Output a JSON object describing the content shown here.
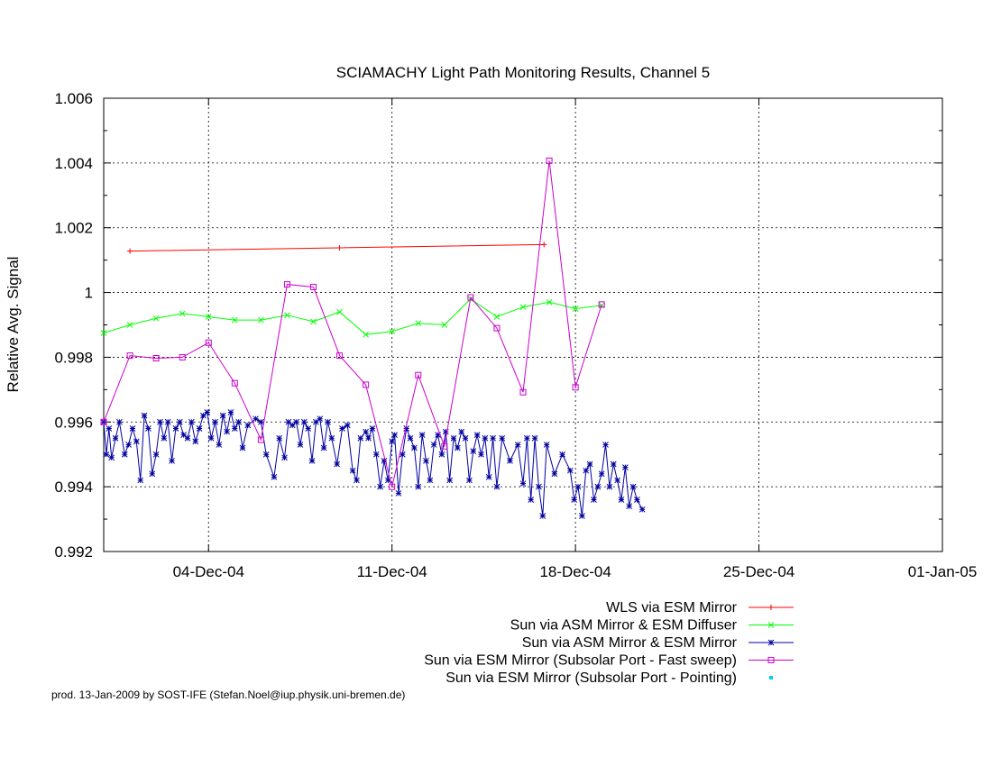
{
  "chart_data": {
    "type": "line",
    "title": "SCIAMACHY Light Path Monitoring Results, Channel 5",
    "ylabel": "Relative Avg. Signal",
    "xlabel": "",
    "xlim": [
      "2004-11-30",
      "2005-01-01"
    ],
    "ylim": [
      0.992,
      1.006
    ],
    "y_ticks": [
      0.992,
      0.994,
      0.996,
      0.998,
      1.0,
      1.002,
      1.004,
      1.006
    ],
    "y_tick_labels": [
      "0.992",
      "0.994",
      "0.996",
      "0.998",
      "1",
      "1.002",
      "1.004",
      "1.006"
    ],
    "x_ticks": [
      "2004-12-04",
      "2004-12-11",
      "2004-12-18",
      "2004-12-25",
      "2005-01-01"
    ],
    "x_tick_labels": [
      "04-Dec-04",
      "11-Dec-04",
      "18-Dec-04",
      "25-Dec-04",
      "01-Jan-05"
    ],
    "grid": true,
    "legend_position": "bottom-right",
    "series": [
      {
        "name": "WLS via ESM Mirror",
        "color": "#ff0000",
        "marker": "plus",
        "points": [
          [
            "2004-12-01",
            1.00128
          ],
          [
            "2004-12-09",
            1.00138
          ],
          [
            "2004-12-16.8",
            1.00148
          ]
        ]
      },
      {
        "name": "Sun via ASM Mirror & ESM Diffuser",
        "color": "#00ff00",
        "marker": "cross",
        "points": [
          [
            "2004-11-30",
            0.99875
          ],
          [
            "2004-12-01",
            0.999
          ],
          [
            "2004-12-02",
            0.9992
          ],
          [
            "2004-12-03",
            0.99935
          ],
          [
            "2004-12-04",
            0.99925
          ],
          [
            "2004-12-05",
            0.99915
          ],
          [
            "2004-12-06",
            0.99915
          ],
          [
            "2004-12-07",
            0.9993
          ],
          [
            "2004-12-08",
            0.9991
          ],
          [
            "2004-12-09",
            0.9994
          ],
          [
            "2004-12-10",
            0.9987
          ],
          [
            "2004-12-11",
            0.9988
          ],
          [
            "2004-12-12",
            0.99905
          ],
          [
            "2004-12-13",
            0.999
          ],
          [
            "2004-12-14",
            0.9998
          ],
          [
            "2004-12-15",
            0.99925
          ],
          [
            "2004-12-16",
            0.99955
          ],
          [
            "2004-12-17",
            0.9997
          ],
          [
            "2004-12-18",
            0.9995
          ],
          [
            "2004-12-19",
            0.9996
          ]
        ]
      },
      {
        "name": "Sun via ASM Mirror & ESM Mirror",
        "color": "#0000a0",
        "marker": "star",
        "points": [
          [
            "2004-11-30.00",
            0.996
          ],
          [
            "2004-11-30.10",
            0.995
          ],
          [
            "2004-11-30.20",
            0.9958
          ],
          [
            "2004-11-30.30",
            0.9949
          ],
          [
            "2004-11-30.45",
            0.9955
          ],
          [
            "2004-11-30.60",
            0.996
          ],
          [
            "2004-11-30.80",
            0.995
          ],
          [
            "2004-11-30.95",
            0.9953
          ],
          [
            "2004-12-01.10",
            0.9958
          ],
          [
            "2004-12-01.25",
            0.9954
          ],
          [
            "2004-12-01.40",
            0.9942
          ],
          [
            "2004-12-01.55",
            0.9962
          ],
          [
            "2004-12-01.70",
            0.9958
          ],
          [
            "2004-12-01.85",
            0.9944
          ],
          [
            "2004-12-02.00",
            0.995
          ],
          [
            "2004-12-02.15",
            0.996
          ],
          [
            "2004-12-02.30",
            0.9955
          ],
          [
            "2004-12-02.45",
            0.996
          ],
          [
            "2004-12-02.60",
            0.9948
          ],
          [
            "2004-12-02.75",
            0.9958
          ],
          [
            "2004-12-02.90",
            0.996
          ],
          [
            "2004-12-03.05",
            0.9956
          ],
          [
            "2004-12-03.20",
            0.9955
          ],
          [
            "2004-12-03.35",
            0.996
          ],
          [
            "2004-12-03.50",
            0.9954
          ],
          [
            "2004-12-03.65",
            0.9958
          ],
          [
            "2004-12-03.80",
            0.9962
          ],
          [
            "2004-12-03.95",
            0.9963
          ],
          [
            "2004-12-04.10",
            0.9955
          ],
          [
            "2004-12-04.25",
            0.996
          ],
          [
            "2004-12-04.40",
            0.9953
          ],
          [
            "2004-12-04.55",
            0.9962
          ],
          [
            "2004-12-04.70",
            0.9957
          ],
          [
            "2004-12-04.85",
            0.9963
          ],
          [
            "2004-12-05.00",
            0.9958
          ],
          [
            "2004-12-05.15",
            0.996
          ],
          [
            "2004-12-05.30",
            0.9952
          ],
          [
            "2004-12-05.50",
            0.9959
          ],
          [
            "2004-12-05.80",
            0.9961
          ],
          [
            "2004-12-06.00",
            0.996
          ],
          [
            "2004-12-06.20",
            0.995
          ],
          [
            "2004-12-06.50",
            0.9943
          ],
          [
            "2004-12-06.70",
            0.9955
          ],
          [
            "2004-12-06.90",
            0.9949
          ],
          [
            "2004-12-07.05",
            0.996
          ],
          [
            "2004-12-07.20",
            0.9959
          ],
          [
            "2004-12-07.35",
            0.996
          ],
          [
            "2004-12-07.50",
            0.9953
          ],
          [
            "2004-12-07.65",
            0.996
          ],
          [
            "2004-12-07.80",
            0.9958
          ],
          [
            "2004-12-07.95",
            0.9948
          ],
          [
            "2004-12-08.10",
            0.996
          ],
          [
            "2004-12-08.25",
            0.9961
          ],
          [
            "2004-12-08.40",
            0.9952
          ],
          [
            "2004-12-08.55",
            0.996
          ],
          [
            "2004-12-08.70",
            0.9955
          ],
          [
            "2004-12-08.90",
            0.9947
          ],
          [
            "2004-12-09.10",
            0.9958
          ],
          [
            "2004-12-09.30",
            0.9959
          ],
          [
            "2004-12-09.50",
            0.9945
          ],
          [
            "2004-12-09.65",
            0.9942
          ],
          [
            "2004-12-09.80",
            0.9955
          ],
          [
            "2004-12-10.00",
            0.9957
          ],
          [
            "2004-12-10.10",
            0.9955
          ],
          [
            "2004-12-10.25",
            0.9958
          ],
          [
            "2004-12-10.40",
            0.995
          ],
          [
            "2004-12-10.55",
            0.994
          ],
          [
            "2004-12-10.70",
            0.9948
          ],
          [
            "2004-12-10.85",
            0.9942
          ],
          [
            "2004-12-11.00",
            0.9954
          ],
          [
            "2004-12-11.10",
            0.9956
          ],
          [
            "2004-12-11.25",
            0.9938
          ],
          [
            "2004-12-11.40",
            0.995
          ],
          [
            "2004-12-11.55",
            0.9958
          ],
          [
            "2004-12-11.70",
            0.9955
          ],
          [
            "2004-12-11.85",
            0.9952
          ],
          [
            "2004-12-12.00",
            0.994
          ],
          [
            "2004-12-12.15",
            0.9956
          ],
          [
            "2004-12-12.30",
            0.9948
          ],
          [
            "2004-12-12.45",
            0.9942
          ],
          [
            "2004-12-12.60",
            0.9953
          ],
          [
            "2004-12-12.75",
            0.9956
          ],
          [
            "2004-12-12.90",
            0.995
          ],
          [
            "2004-12-13.05",
            0.9957
          ],
          [
            "2004-12-13.20",
            0.9942
          ],
          [
            "2004-12-13.35",
            0.9955
          ],
          [
            "2004-12-13.50",
            0.9952
          ],
          [
            "2004-12-13.65",
            0.9957
          ],
          [
            "2004-12-13.80",
            0.9955
          ],
          [
            "2004-12-13.95",
            0.9942
          ],
          [
            "2004-12-14.10",
            0.9951
          ],
          [
            "2004-12-14.25",
            0.9956
          ],
          [
            "2004-12-14.40",
            0.995
          ],
          [
            "2004-12-14.55",
            0.9955
          ],
          [
            "2004-12-14.70",
            0.9943
          ],
          [
            "2004-12-14.85",
            0.9955
          ],
          [
            "2004-12-15.00",
            0.994
          ],
          [
            "2004-12-15.20",
            0.9955
          ],
          [
            "2004-12-15.50",
            0.9948
          ],
          [
            "2004-12-15.80",
            0.9953
          ],
          [
            "2004-12-16.00",
            0.9941
          ],
          [
            "2004-12-16.15",
            0.9955
          ],
          [
            "2004-12-16.30",
            0.9936
          ],
          [
            "2004-12-16.45",
            0.9955
          ],
          [
            "2004-12-16.60",
            0.994
          ],
          [
            "2004-12-16.75",
            0.9931
          ],
          [
            "2004-12-16.90",
            0.9953
          ],
          [
            "2004-12-17.20",
            0.9944
          ],
          [
            "2004-12-17.50",
            0.995
          ],
          [
            "2004-12-17.80",
            0.9945
          ],
          [
            "2004-12-17.95",
            0.9936
          ],
          [
            "2004-12-18.10",
            0.994
          ],
          [
            "2004-12-18.25",
            0.9931
          ],
          [
            "2004-12-18.40",
            0.9945
          ],
          [
            "2004-12-18.55",
            0.9947
          ],
          [
            "2004-12-18.70",
            0.9936
          ],
          [
            "2004-12-18.85",
            0.994
          ],
          [
            "2004-12-19.00",
            0.9944
          ],
          [
            "2004-12-19.15",
            0.9953
          ],
          [
            "2004-12-19.30",
            0.994
          ],
          [
            "2004-12-19.45",
            0.9947
          ],
          [
            "2004-12-19.60",
            0.9942
          ],
          [
            "2004-12-19.75",
            0.9936
          ],
          [
            "2004-12-19.90",
            0.9946
          ],
          [
            "2004-12-20.05",
            0.9934
          ],
          [
            "2004-12-20.20",
            0.994
          ],
          [
            "2004-12-20.35",
            0.9936
          ],
          [
            "2004-12-20.55",
            0.9933
          ]
        ]
      },
      {
        "name": "Sun via ESM Mirror (Subsolar Port - Fast sweep)",
        "color": "#cc00cc",
        "marker": "square",
        "points": [
          [
            "2004-11-30",
            0.996
          ],
          [
            "2004-12-01",
            0.99805
          ],
          [
            "2004-12-02",
            0.99797
          ],
          [
            "2004-12-03",
            0.998
          ],
          [
            "2004-12-04",
            0.99845
          ],
          [
            "2004-12-05",
            0.9972
          ],
          [
            "2004-12-06",
            0.99545
          ],
          [
            "2004-12-07",
            1.00025
          ],
          [
            "2004-12-08",
            1.00017
          ],
          [
            "2004-12-09",
            0.99805
          ],
          [
            "2004-12-10",
            0.99715
          ],
          [
            "2004-12-11",
            0.994
          ],
          [
            "2004-12-12",
            0.99745
          ],
          [
            "2004-12-13",
            0.99525
          ],
          [
            "2004-12-14",
            0.99985
          ],
          [
            "2004-12-15",
            0.9989
          ],
          [
            "2004-12-16",
            0.99692
          ],
          [
            "2004-12-17",
            1.00407
          ],
          [
            "2004-12-18",
            0.99707
          ],
          [
            "2004-12-19",
            0.99963
          ]
        ]
      },
      {
        "name": "Sun via ESM Mirror (Subsolar Port - Pointing)",
        "color": "#00ccff",
        "marker": "dot",
        "points": []
      }
    ]
  },
  "footer": "prod. 13-Jan-2009 by SOST-IFE (Stefan.Noel@iup.physik.uni-bremen.de)"
}
